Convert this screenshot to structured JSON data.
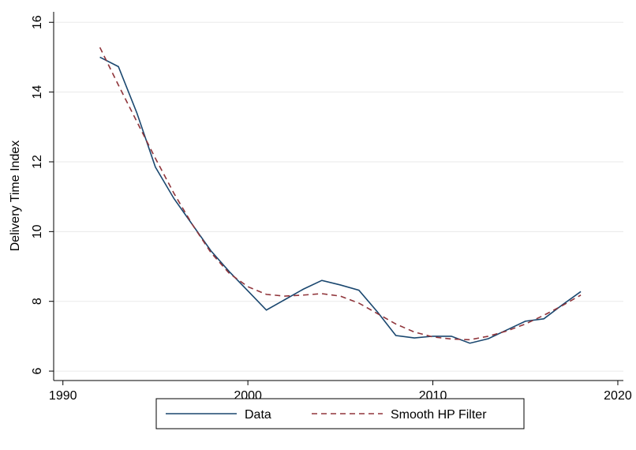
{
  "chart_data": {
    "type": "line",
    "y_label": "Delivery Time Index",
    "x": [
      1992,
      1993,
      1994,
      1995,
      1996,
      1997,
      1998,
      1999,
      2000,
      2001,
      2002,
      2003,
      2004,
      2005,
      2006,
      2007,
      2008,
      2009,
      2010,
      2011,
      2012,
      2013,
      2014,
      2015,
      2016,
      2017,
      2018
    ],
    "series": [
      {
        "name": "Data",
        "color": "#1a476f",
        "dash": false,
        "values": [
          15.0,
          14.73,
          13.4,
          11.85,
          10.95,
          10.2,
          9.45,
          8.85,
          8.3,
          7.75,
          8.05,
          8.35,
          8.6,
          8.47,
          8.32,
          7.7,
          7.02,
          6.95,
          7.0,
          7.0,
          6.8,
          6.93,
          7.18,
          7.43,
          7.5,
          7.9,
          8.28
        ]
      },
      {
        "name": "Smooth HP Filter",
        "color": "#90353b",
        "dash": true,
        "values": [
          15.28,
          14.2,
          13.15,
          12.1,
          11.1,
          10.2,
          9.4,
          8.8,
          8.42,
          8.2,
          8.15,
          8.18,
          8.22,
          8.15,
          7.95,
          7.65,
          7.35,
          7.12,
          6.98,
          6.92,
          6.9,
          7.0,
          7.15,
          7.35,
          7.6,
          7.88,
          8.18
        ]
      }
    ],
    "xlim": [
      1989.5,
      2020.3
    ],
    "xticks": [
      1990,
      2000,
      2010,
      2020
    ],
    "ylim": [
      5.73,
      16.3
    ],
    "yticks": [
      6,
      8,
      10,
      12,
      14,
      16
    ],
    "grid": true,
    "legend": "bottom"
  }
}
